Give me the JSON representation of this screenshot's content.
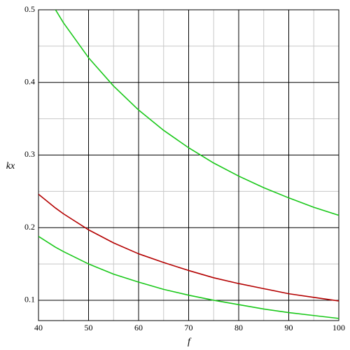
{
  "chart_data": {
    "type": "line",
    "xlabel": "f",
    "ylabel": "kx",
    "x": [
      40,
      43.4,
      45,
      50,
      55,
      60,
      65,
      70,
      75,
      80,
      85,
      90,
      95,
      100
    ],
    "series": [
      {
        "color": "#19c819",
        "values": [
          null,
          0.5,
          0.482,
          0.434,
          0.395,
          0.362,
          0.334,
          0.31,
          0.289,
          0.271,
          0.255,
          0.241,
          0.228,
          0.217
        ]
      },
      {
        "color": "#b40000",
        "values": [
          0.246,
          0.227,
          0.219,
          0.197,
          0.179,
          0.164,
          0.152,
          0.141,
          0.131,
          0.123,
          0.116,
          0.109,
          0.104,
          0.099
        ]
      },
      {
        "color": "#19c819",
        "values": [
          0.188,
          0.173,
          0.167,
          0.15,
          0.136,
          0.125,
          0.115,
          0.107,
          0.1,
          0.094,
          0.088,
          0.083,
          0.079,
          0.075
        ]
      }
    ],
    "xlim": [
      40,
      100
    ],
    "ylim": [
      0.072,
      0.5
    ],
    "xticks": [
      40,
      50,
      60,
      70,
      80,
      90,
      100
    ],
    "yticks": [
      0.1,
      0.2,
      0.3,
      0.4,
      0.5
    ],
    "x_minor_ticks": [
      45,
      55,
      65,
      75,
      85,
      95
    ],
    "y_minor_ticks": [
      0.15,
      0.25,
      0.35,
      0.45
    ],
    "grid": true
  }
}
